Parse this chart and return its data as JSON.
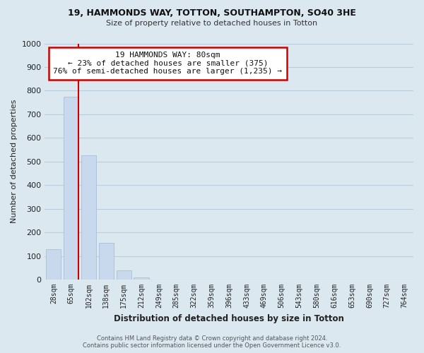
{
  "title": "19, HAMMONDS WAY, TOTTON, SOUTHAMPTON, SO40 3HE",
  "subtitle": "Size of property relative to detached houses in Totton",
  "xlabel": "Distribution of detached houses by size in Totton",
  "ylabel": "Number of detached properties",
  "bar_labels": [
    "28sqm",
    "65sqm",
    "102sqm",
    "138sqm",
    "175sqm",
    "212sqm",
    "249sqm",
    "285sqm",
    "322sqm",
    "359sqm",
    "396sqm",
    "433sqm",
    "469sqm",
    "506sqm",
    "543sqm",
    "580sqm",
    "616sqm",
    "653sqm",
    "690sqm",
    "727sqm",
    "764sqm"
  ],
  "bar_values": [
    130,
    775,
    525,
    155,
    38,
    10,
    0,
    0,
    0,
    0,
    0,
    0,
    0,
    0,
    0,
    0,
    0,
    0,
    0,
    0,
    0
  ],
  "bar_color": "#c9d9ed",
  "bar_edge_color": "#a8bfd6",
  "highlight_color": "#cc0000",
  "ylim": [
    0,
    1000
  ],
  "yticks": [
    0,
    100,
    200,
    300,
    400,
    500,
    600,
    700,
    800,
    900,
    1000
  ],
  "annotation_title": "19 HAMMONDS WAY: 80sqm",
  "annotation_line1": "← 23% of detached houses are smaller (375)",
  "annotation_line2": "76% of semi-detached houses are larger (1,235) →",
  "annotation_box_facecolor": "#ffffff",
  "annotation_box_edgecolor": "#cc0000",
  "footer_line1": "Contains HM Land Registry data © Crown copyright and database right 2024.",
  "footer_line2": "Contains public sector information licensed under the Open Government Licence v3.0.",
  "bg_color": "#dce8f0",
  "plot_bg_color": "#dce8f0",
  "grid_color": "#b8cedd"
}
